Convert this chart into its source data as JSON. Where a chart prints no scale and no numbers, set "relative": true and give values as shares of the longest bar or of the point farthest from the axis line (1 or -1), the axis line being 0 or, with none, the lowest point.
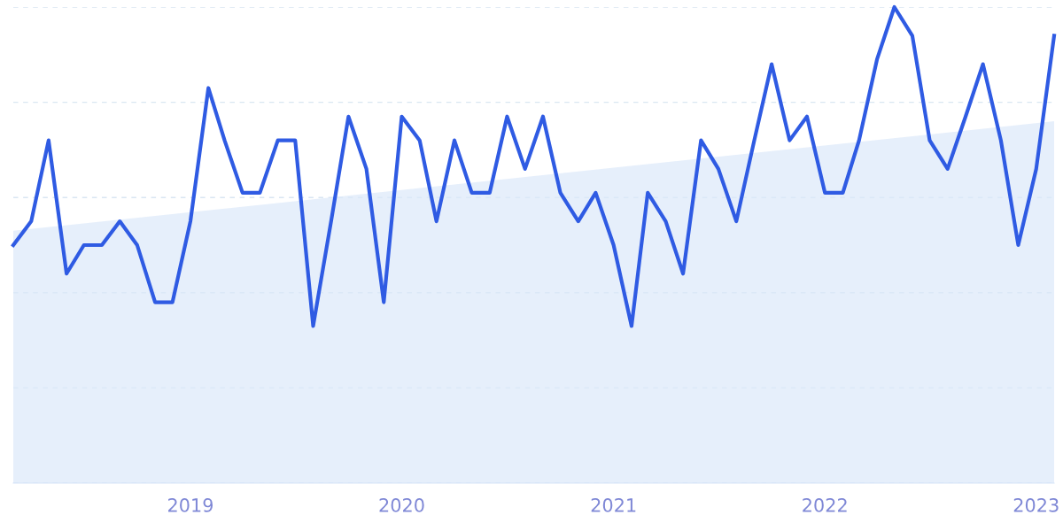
{
  "chart_data": {
    "type": "line",
    "relative": true,
    "grid": "y",
    "marker": "none",
    "line_style": "solid",
    "x": [
      "2018-03",
      "2018-04",
      "2018-05",
      "2018-06",
      "2018-07",
      "2018-08",
      "2018-09",
      "2018-10",
      "2018-11",
      "2018-12",
      "2019-01",
      "2019-02",
      "2019-03",
      "2019-04",
      "2019-05",
      "2019-06",
      "2019-07",
      "2019-08",
      "2019-09",
      "2019-10",
      "2019-11",
      "2019-12",
      "2020-01",
      "2020-02",
      "2020-03",
      "2020-04",
      "2020-05",
      "2020-06",
      "2020-07",
      "2020-08",
      "2020-09",
      "2020-10",
      "2020-11",
      "2020-12",
      "2021-01",
      "2021-02",
      "2021-03",
      "2021-04",
      "2021-05",
      "2021-06",
      "2021-07",
      "2021-08",
      "2021-09",
      "2021-10",
      "2021-11",
      "2021-12",
      "2022-01",
      "2022-02",
      "2022-03",
      "2022-04",
      "2022-05",
      "2022-06",
      "2022-07",
      "2022-08",
      "2022-09",
      "2022-10",
      "2022-11",
      "2022-12",
      "2023-01",
      "2023-02"
    ],
    "xlim": [
      "2018-03",
      "2023-02"
    ],
    "xticks": [
      "2019",
      "2020",
      "2021",
      "2022",
      "2023"
    ],
    "series": [
      {
        "type": "area",
        "x": [
          "2018-03",
          "2023-02"
        ],
        "values": [
          0.53,
          0.76
        ],
        "color": "#dbe8fa"
      },
      {
        "color": "#2f5be3",
        "values": [
          0.5,
          0.55,
          0.72,
          0.44,
          0.5,
          0.5,
          0.55,
          0.5,
          0.38,
          0.38,
          0.55,
          0.83,
          0.72,
          0.61,
          0.61,
          0.72,
          0.72,
          0.33,
          0.55,
          0.77,
          0.66,
          0.38,
          0.77,
          0.72,
          0.55,
          0.72,
          0.61,
          0.61,
          0.77,
          0.66,
          0.77,
          0.61,
          0.55,
          0.61,
          0.5,
          0.33,
          0.61,
          0.55,
          0.44,
          0.72,
          0.66,
          0.55,
          0.72,
          0.88,
          0.72,
          0.77,
          0.61,
          0.61,
          0.72,
          0.89,
          1.0,
          0.94,
          0.72,
          0.66,
          0.77,
          0.88,
          0.72,
          0.5,
          0.66,
          0.94
        ]
      }
    ]
  }
}
